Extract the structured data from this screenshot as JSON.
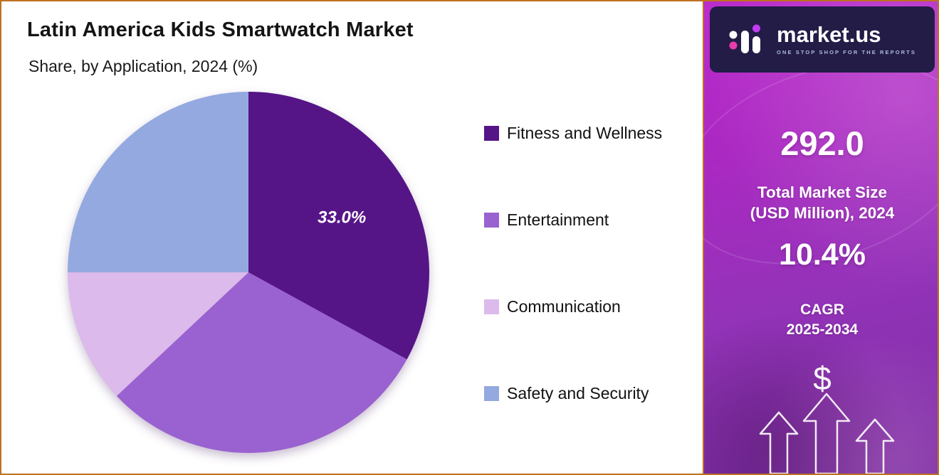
{
  "header": {
    "title": "Latin America Kids Smartwatch Market",
    "subtitle": "Share, by Application, 2024 (%)"
  },
  "chart_data": {
    "type": "pie",
    "title": "Latin America Kids Smartwatch Market Share, by Application, 2024 (%)",
    "labels": [
      "Fitness and Wellness",
      "Entertainment",
      "Communication",
      "Safety and Security"
    ],
    "values": [
      33.0,
      30.0,
      12.0,
      25.0
    ],
    "colors": [
      "#561587",
      "#9a62d0",
      "#dcbaeb",
      "#93a9e0"
    ],
    "start_angle": "top",
    "direction": "clockwise",
    "legend_position": "right",
    "data_labels": [
      {
        "slice_index": 0,
        "text": "33.0%"
      }
    ]
  },
  "sidebar": {
    "brand_name": "market.us",
    "brand_tagline": "ONE STOP SHOP FOR THE REPORTS",
    "market_size_value": "292.0",
    "market_size_label": [
      "Total Market Size",
      "(USD Million), 2024"
    ],
    "cagr_value": "10.4%",
    "cagr_label": [
      "CAGR",
      "2025-2034"
    ],
    "dollar_symbol": "$",
    "colors": {
      "background_top": "#bb2ccc",
      "background_bottom": "#7b2da4",
      "brand_box": "#221c47",
      "frame_border": "#bf7021"
    }
  }
}
